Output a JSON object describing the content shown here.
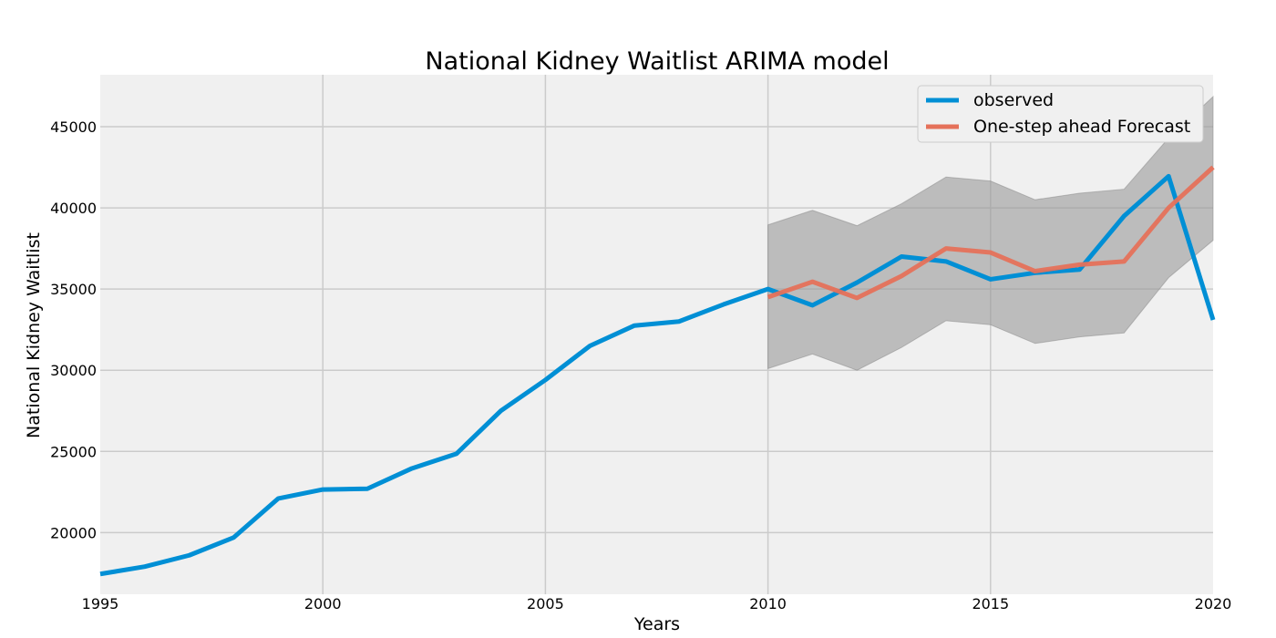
{
  "chart_data": {
    "type": "line",
    "title": "National Kidney Waitlist ARIMA model",
    "xlabel": "Years",
    "ylabel": "National Kidney Waitlist",
    "xlim": [
      1995,
      2020
    ],
    "ylim": [
      16200,
      48200
    ],
    "xticks": [
      "1995",
      "2000",
      "2005",
      "2010",
      "2015",
      "2020"
    ],
    "yticks": [
      "20000",
      "25000",
      "30000",
      "35000",
      "40000",
      "45000"
    ],
    "grid": true,
    "legend_position": "top-right",
    "colors": {
      "observed": "#008fd5",
      "forecast": "#e5715a",
      "band": "#9a9a9a",
      "plot_bg": "#f0f0f0",
      "grid": "#cbcbcb"
    },
    "series": [
      {
        "name": "observed",
        "x": [
          1995,
          1996,
          1997,
          1998,
          1999,
          2000,
          2001,
          2002,
          2003,
          2004,
          2005,
          2006,
          2007,
          2008,
          2009,
          2010,
          2011,
          2012,
          2013,
          2014,
          2015,
          2016,
          2017,
          2018,
          2019,
          2020
        ],
        "values": [
          17450,
          17900,
          18600,
          19700,
          22100,
          22650,
          22700,
          23950,
          24850,
          27500,
          29400,
          31500,
          32750,
          33000,
          34050,
          35000,
          34000,
          35400,
          37000,
          36700,
          35600,
          36000,
          36200,
          39500,
          41950,
          33100
        ]
      },
      {
        "name": "One-step ahead Forecast",
        "x": [
          2010,
          2011,
          2012,
          2013,
          2014,
          2015,
          2016,
          2017,
          2018,
          2019,
          2020
        ],
        "values": [
          34500,
          35450,
          34450,
          35800,
          37500,
          37250,
          36100,
          36500,
          36700,
          40000,
          42500
        ]
      }
    ],
    "confidence_interval": {
      "x": [
        2010,
        2011,
        2012,
        2013,
        2014,
        2015,
        2016,
        2017,
        2018,
        2019,
        2020
      ],
      "lower": [
        30100,
        31000,
        30000,
        31400,
        33050,
        32800,
        31650,
        32050,
        32300,
        35700,
        38000
      ],
      "upper": [
        38950,
        39850,
        38900,
        40250,
        41900,
        41650,
        40500,
        40900,
        41150,
        44300,
        46850
      ]
    }
  }
}
